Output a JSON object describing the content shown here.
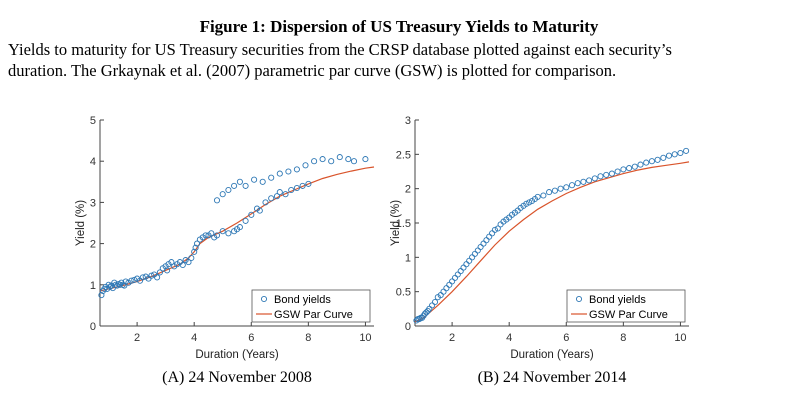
{
  "figure": {
    "title": "Figure 1: Dispersion of US Treasury Yields to Maturity",
    "caption_line1": "Yields to maturity for US Treasury securities from the CRSP database plotted against each security’s",
    "caption_line2": "duration.  The Grkaynak et al. (2007) parametric par curve (GSW) is plotted for comparison."
  },
  "colors": {
    "scatter": "#2e78b5",
    "curve": "#d9542b",
    "axis": "#444444"
  },
  "chart_data": [
    {
      "type": "scatter",
      "panel_label": "(A) 24 November 2008",
      "xlabel": "Duration (Years)",
      "ylabel": "Yield (%)",
      "xlim": [
        0.7,
        10.3
      ],
      "ylim": [
        0,
        5
      ],
      "xticks": [
        2,
        4,
        6,
        8,
        10
      ],
      "yticks": [
        0,
        1,
        2,
        3,
        4,
        5
      ],
      "legend_position": "bottom-right",
      "series": [
        {
          "name": "Bond yields",
          "kind": "scatter",
          "x": [
            0.75,
            0.8,
            0.85,
            0.9,
            0.95,
            1.0,
            1.05,
            1.1,
            1.15,
            1.2,
            1.25,
            1.3,
            1.35,
            1.4,
            1.45,
            1.5,
            1.55,
            1.6,
            1.7,
            1.8,
            1.9,
            2.0,
            2.1,
            2.2,
            2.3,
            2.4,
            2.5,
            2.6,
            2.7,
            2.8,
            2.9,
            3.0,
            3.05,
            3.1,
            3.2,
            3.3,
            3.4,
            3.5,
            3.6,
            3.7,
            3.8,
            3.9,
            4.0,
            4.05,
            4.1,
            4.2,
            4.3,
            4.4,
            4.5,
            4.6,
            4.7,
            4.8,
            5.0,
            5.2,
            5.4,
            5.5,
            5.6,
            5.8,
            6.0,
            6.2,
            6.3,
            6.5,
            6.7,
            6.9,
            7.0,
            7.2,
            7.4,
            7.6,
            7.8,
            8.0,
            4.8,
            5.0,
            5.2,
            5.4,
            5.6,
            5.8,
            6.1,
            6.4,
            6.7,
            7.0,
            7.3,
            7.6,
            7.9,
            8.2,
            8.5,
            8.8,
            9.1,
            9.4,
            9.6,
            10.0
          ],
          "y": [
            0.75,
            0.85,
            0.9,
            0.95,
            0.9,
            1.0,
            0.95,
            0.98,
            0.92,
            1.05,
            1.0,
            0.98,
            1.02,
            1.0,
            1.05,
            1.0,
            0.98,
            1.08,
            1.05,
            1.1,
            1.12,
            1.15,
            1.1,
            1.18,
            1.2,
            1.15,
            1.22,
            1.25,
            1.18,
            1.3,
            1.4,
            1.45,
            1.35,
            1.5,
            1.55,
            1.45,
            1.5,
            1.55,
            1.48,
            1.6,
            1.55,
            1.65,
            1.8,
            1.9,
            2.0,
            2.1,
            2.15,
            2.2,
            2.2,
            2.25,
            2.15,
            2.2,
            2.3,
            2.25,
            2.3,
            2.35,
            2.4,
            2.55,
            2.7,
            2.85,
            2.8,
            3.0,
            3.1,
            3.15,
            3.25,
            3.2,
            3.3,
            3.35,
            3.4,
            3.45,
            3.05,
            3.2,
            3.3,
            3.4,
            3.5,
            3.4,
            3.55,
            3.5,
            3.6,
            3.7,
            3.75,
            3.8,
            3.9,
            4.0,
            4.05,
            4.0,
            4.1,
            4.05,
            4.0,
            4.05
          ]
        },
        {
          "name": "GSW Par Curve",
          "kind": "line",
          "x": [
            0.7,
            1.0,
            1.5,
            2.0,
            2.5,
            3.0,
            3.5,
            3.8,
            4.0,
            4.2,
            4.5,
            5.0,
            5.5,
            6.0,
            6.5,
            7.0,
            7.5,
            8.0,
            8.5,
            9.0,
            9.5,
            10.0,
            10.3
          ],
          "y": [
            0.85,
            0.9,
            0.98,
            1.08,
            1.2,
            1.35,
            1.5,
            1.65,
            1.8,
            2.0,
            2.15,
            2.3,
            2.5,
            2.72,
            2.95,
            3.15,
            3.3,
            3.45,
            3.58,
            3.68,
            3.76,
            3.83,
            3.86
          ]
        }
      ]
    },
    {
      "type": "scatter",
      "panel_label": "(B) 24 November 2014",
      "xlabel": "Duration (Years)",
      "ylabel": "Yield (%)",
      "xlim": [
        0.7,
        10.3
      ],
      "ylim": [
        0,
        3
      ],
      "xticks": [
        2,
        4,
        6,
        8,
        10
      ],
      "yticks": [
        0,
        0.5,
        1,
        1.5,
        2,
        2.5,
        3
      ],
      "legend_position": "bottom-right",
      "series": [
        {
          "name": "Bond yields",
          "kind": "scatter",
          "x": [
            0.75,
            0.8,
            0.85,
            0.9,
            0.95,
            1.0,
            1.05,
            1.1,
            1.15,
            1.2,
            1.3,
            1.4,
            1.5,
            1.6,
            1.7,
            1.8,
            1.9,
            2.0,
            2.1,
            2.2,
            2.3,
            2.4,
            2.5,
            2.6,
            2.7,
            2.8,
            2.9,
            3.0,
            3.1,
            3.2,
            3.3,
            3.4,
            3.5,
            3.6,
            3.7,
            3.8,
            3.9,
            4.0,
            4.1,
            4.2,
            4.3,
            4.4,
            4.5,
            4.6,
            4.7,
            4.8,
            4.9,
            5.0,
            5.2,
            5.4,
            5.6,
            5.8,
            6.0,
            6.2,
            6.4,
            6.6,
            6.8,
            7.0,
            7.2,
            7.4,
            7.6,
            7.8,
            8.0,
            8.2,
            8.4,
            8.6,
            8.8,
            9.0,
            9.2,
            9.4,
            9.6,
            9.8,
            10.0,
            10.2
          ],
          "y": [
            0.08,
            0.1,
            0.1,
            0.12,
            0.12,
            0.15,
            0.18,
            0.2,
            0.22,
            0.25,
            0.3,
            0.35,
            0.42,
            0.45,
            0.5,
            0.55,
            0.6,
            0.65,
            0.7,
            0.75,
            0.8,
            0.85,
            0.9,
            0.95,
            1.0,
            1.05,
            1.1,
            1.15,
            1.2,
            1.25,
            1.3,
            1.35,
            1.4,
            1.42,
            1.48,
            1.52,
            1.55,
            1.58,
            1.62,
            1.65,
            1.68,
            1.72,
            1.75,
            1.78,
            1.8,
            1.82,
            1.85,
            1.88,
            1.9,
            1.95,
            1.97,
            2.0,
            2.02,
            2.05,
            2.08,
            2.1,
            2.12,
            2.15,
            2.18,
            2.2,
            2.22,
            2.25,
            2.28,
            2.3,
            2.32,
            2.35,
            2.38,
            2.4,
            2.42,
            2.45,
            2.48,
            2.5,
            2.52,
            2.55
          ]
        },
        {
          "name": "GSW Par Curve",
          "kind": "line",
          "x": [
            0.7,
            1.0,
            1.5,
            2.0,
            2.5,
            3.0,
            3.5,
            4.0,
            4.5,
            5.0,
            5.5,
            6.0,
            6.5,
            7.0,
            7.5,
            8.0,
            8.5,
            9.0,
            9.5,
            10.0,
            10.3
          ],
          "y": [
            0.06,
            0.12,
            0.3,
            0.5,
            0.72,
            0.95,
            1.18,
            1.38,
            1.55,
            1.7,
            1.82,
            1.93,
            2.02,
            2.1,
            2.16,
            2.22,
            2.27,
            2.31,
            2.34,
            2.37,
            2.39
          ]
        }
      ]
    }
  ]
}
